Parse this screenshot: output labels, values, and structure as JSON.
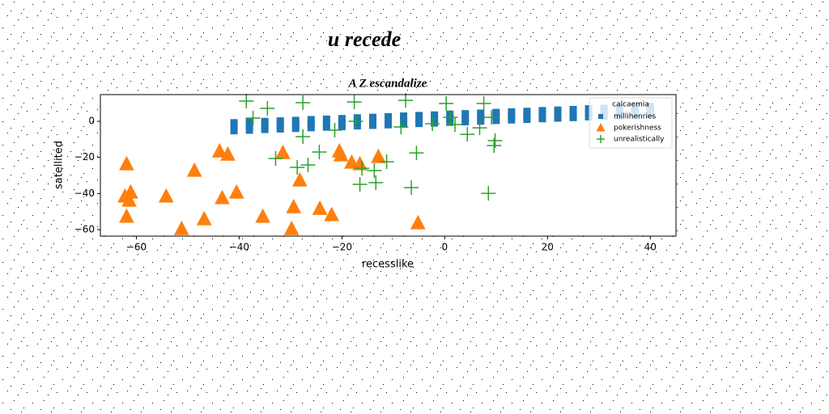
{
  "chart_data": {
    "type": "scatter",
    "suptitle": "u recede",
    "title": "A Z escandalize",
    "xlabel": "recesslike",
    "ylabel": "satellited",
    "legend_title": "calcaemia",
    "legend_loc": "upper right",
    "xlim": [
      -67,
      45
    ],
    "ylim": [
      -63.6,
      14.8
    ],
    "xticks": [
      {
        "value": -60,
        "label": "−60"
      },
      {
        "value": -40,
        "label": "−40"
      },
      {
        "value": -20,
        "label": "−20"
      },
      0,
      20,
      40
    ],
    "yticks": [
      {
        "value": -60,
        "label": "−60"
      },
      {
        "value": -40,
        "label": "−40"
      },
      {
        "value": -20,
        "label": "−20"
      },
      0
    ],
    "series": [
      {
        "name": "millihenries",
        "color": "#1f77b4",
        "marker": "square",
        "x": [
          -41,
          -38,
          -35,
          -32,
          -29,
          -26,
          -23,
          -20,
          -17,
          -14,
          -11,
          -8,
          -5,
          -2,
          1,
          4,
          7,
          10,
          13,
          16,
          19,
          22,
          25,
          28,
          31,
          34,
          37,
          40
        ],
        "y": [
          -3,
          -2.7,
          -2.3,
          -2,
          -1.7,
          -1.3,
          -1,
          -0.7,
          -0.3,
          0,
          0.3,
          0.7,
          1,
          1.3,
          1.7,
          2,
          2.3,
          2.7,
          3,
          3.3,
          3.7,
          4,
          4.3,
          4.7,
          5,
          5.3,
          5.7,
          6
        ]
      },
      {
        "name": "pokerishness",
        "color": "#ff7f0e",
        "marker": "triangle",
        "x": [
          -61.9,
          -62.2,
          -61.1,
          -61.4,
          -61.9,
          -54.2,
          -51.2,
          -48.7,
          -46.8,
          -43.8,
          -42.2,
          -43.3,
          -40.5,
          -35.4,
          -31.5,
          -29.4,
          -29.8,
          -28.2,
          -24.3,
          -22,
          -20.5,
          -20.2,
          -18.1,
          -16.5,
          -12.9,
          -5.2
        ],
        "y": [
          -23.7,
          -41.6,
          -39.4,
          -43.9,
          -52.8,
          -41.6,
          -59.6,
          -27.3,
          -54.2,
          -16.6,
          -18.4,
          -42.5,
          -39.4,
          -52.8,
          -17.5,
          -47.5,
          -59.6,
          -32.7,
          -48.4,
          -51.9,
          -16.6,
          -18.8,
          -22.8,
          -23.7,
          -19.7,
          -56.4
        ]
      },
      {
        "name": "unrealistically",
        "color": "#2ca02c",
        "marker": "plus",
        "x": [
          -38.6,
          -37.3,
          -34.5,
          -27.6,
          -27.6,
          -32.9,
          -28.7,
          -26.6,
          -24.4,
          -21.4,
          -17.6,
          -17.3,
          -16.5,
          -16.1,
          -13.7,
          -13.4,
          -11.3,
          -8.5,
          -7.6,
          -5.5,
          -6.5,
          -2.4,
          0.3,
          1.1,
          2,
          4.4,
          6.8,
          7.6,
          9.1,
          9.6,
          9.8,
          8.5
        ],
        "y": [
          11.2,
          1.8,
          7.2,
          10.3,
          -8.5,
          -20.6,
          -25.5,
          -24.2,
          -17,
          -4.9,
          10.7,
          0,
          -34.9,
          -26,
          -27.3,
          -34,
          -22.4,
          -3.1,
          11.6,
          -17.5,
          -36.7,
          -1.3,
          9.9,
          2.2,
          -1.8,
          -7.2,
          -3.6,
          9.9,
          2.2,
          -13.4,
          -10.7,
          -39.9
        ]
      }
    ]
  }
}
